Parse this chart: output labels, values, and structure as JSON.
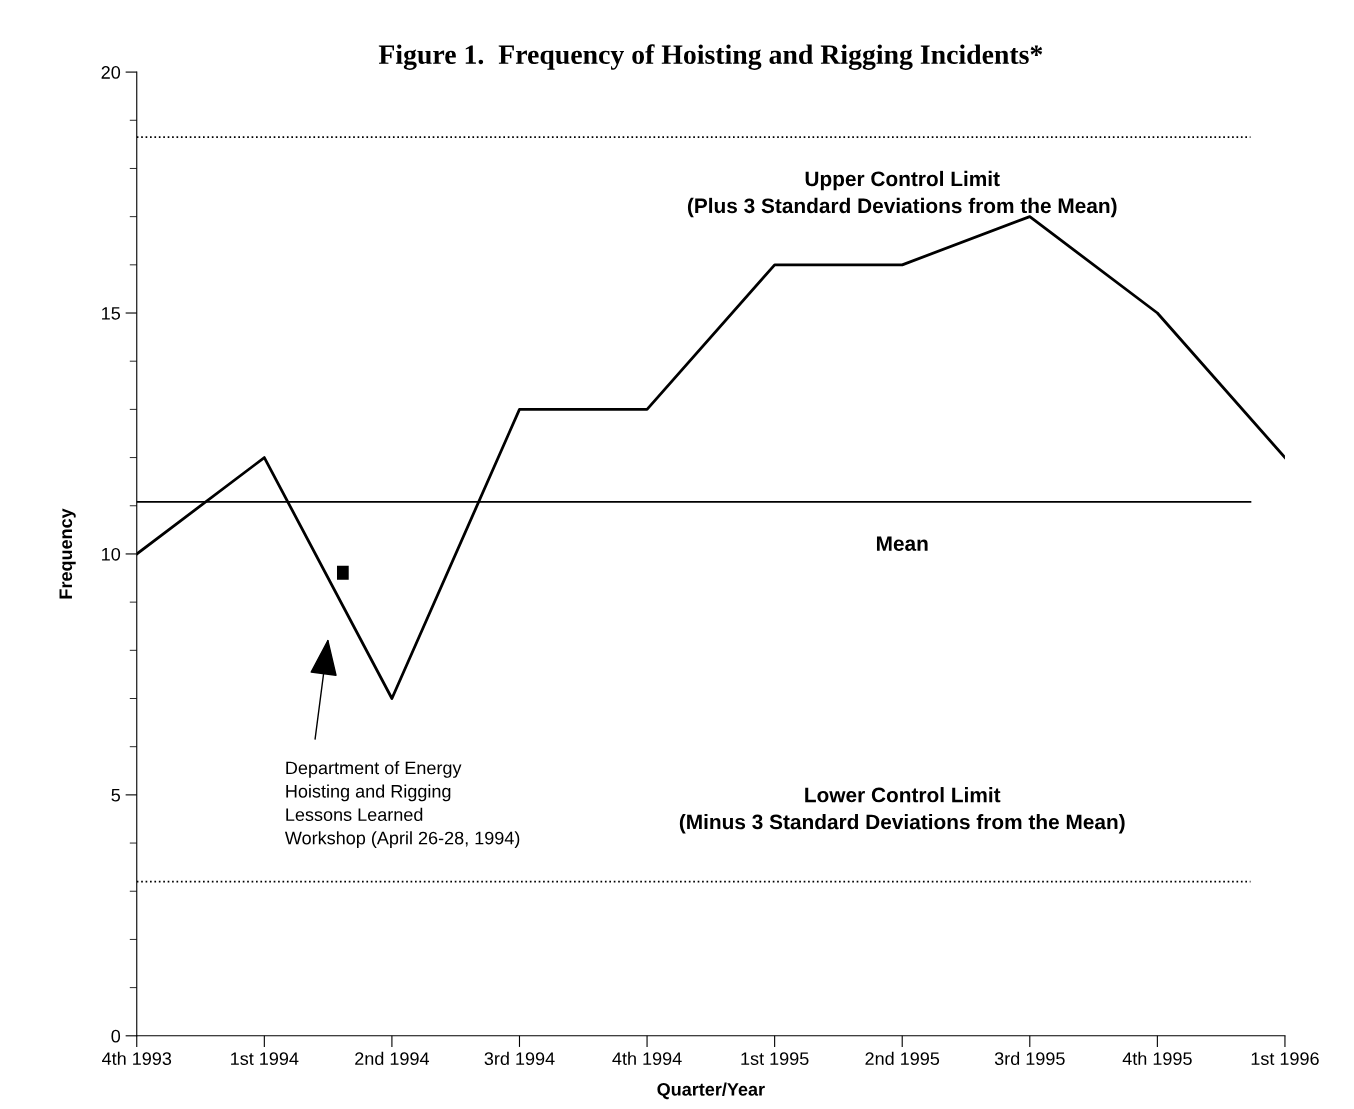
{
  "chart_data": {
    "type": "line",
    "title": "Figure 1.  Frequency of Hoisting and Rigging Incidents*",
    "xlabel": "Quarter/Year",
    "ylabel": "Frequency",
    "categories": [
      "4th 1993",
      "1st 1994",
      "2nd 1994",
      "3rd 1994",
      "4th 1994",
      "1st 1995",
      "2nd 1995",
      "3rd 1995",
      "4th 1995",
      "1st 1996"
    ],
    "series": [
      {
        "color": "#000000",
        "values": [
          10,
          12,
          7,
          13,
          13,
          16,
          16,
          17,
          15,
          12
        ]
      }
    ],
    "ylim": [
      0,
      20
    ],
    "yticks": [
      0,
      5,
      10,
      15,
      20
    ],
    "grid": false,
    "marker": "none",
    "line_style": "solid",
    "ref_lines": [
      {
        "axis": "y",
        "value": 18.65,
        "label": "Upper Control Limit\n(Plus 3 Standard Deviations from the Mean)",
        "line_style": "dotted",
        "color": "#000000"
      },
      {
        "axis": "y",
        "value": 11.08,
        "label": "Mean",
        "line_style": "solid",
        "color": "#000000"
      },
      {
        "axis": "y",
        "value": 3.2,
        "label": "Lower Control Limit\n(Minus 3 Standard Deviations from the Mean)",
        "line_style": "dotted",
        "color": "#000000"
      }
    ],
    "annotations": [
      "Department of Energy\nHoisting and Rigging\nLessons Learned\nWorkshop (April 26-28, 1994)"
    ]
  }
}
